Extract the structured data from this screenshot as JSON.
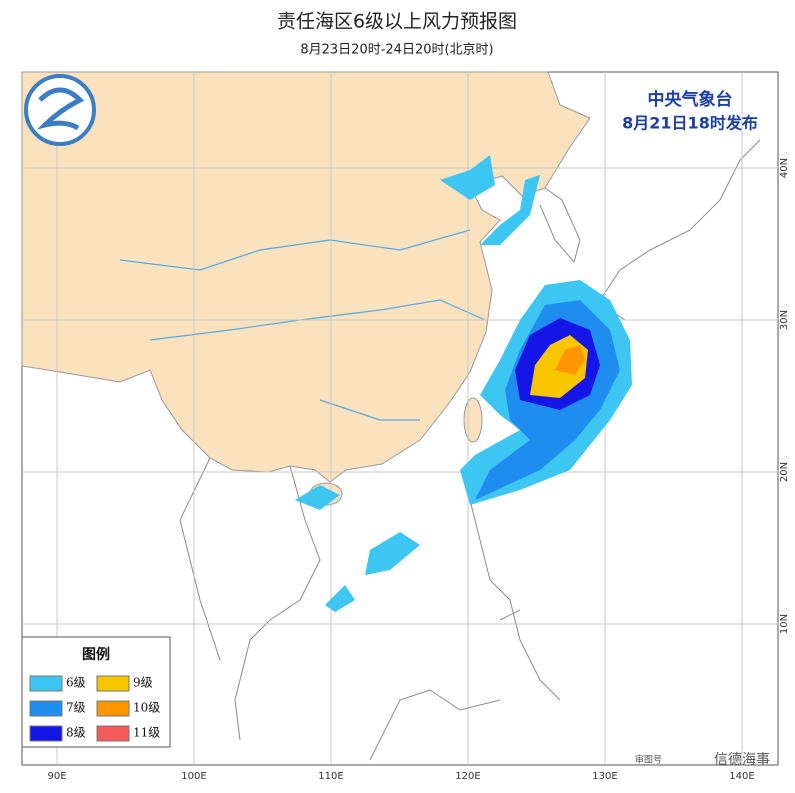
{
  "header": {
    "title": "责任海区6级以上风力预报图",
    "subtitle": "8月23日20时-24日20时(北京时)"
  },
  "issuer": {
    "name": "中央气象台",
    "time": "8月21日18时发布"
  },
  "legend": {
    "title": "图例",
    "items": [
      {
        "label": "6级",
        "color": "#3ec6f2"
      },
      {
        "label": "7级",
        "color": "#1f8cf0"
      },
      {
        "label": "8级",
        "color": "#1515e8"
      },
      {
        "label": "9级",
        "color": "#f7c600"
      },
      {
        "label": "10级",
        "color": "#ff9500"
      },
      {
        "label": "11级",
        "color": "#f55a5a"
      }
    ]
  },
  "lon_labels": [
    "90E",
    "100E",
    "110E",
    "120E",
    "130E",
    "140E"
  ],
  "lat_labels": [
    "40N",
    "30N",
    "20N",
    "10N"
  ],
  "footer": {
    "approval": "审图号",
    "watermark": "信德海事"
  }
}
